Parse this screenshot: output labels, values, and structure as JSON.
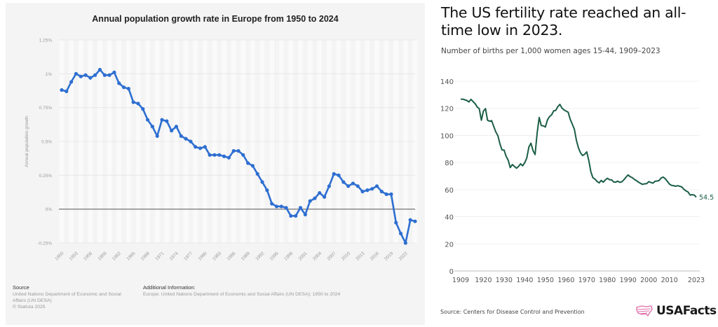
{
  "chart_data": [
    {
      "type": "line",
      "title": "Annual population growth rate in Europe from 1950 to 2024",
      "xlabel": "",
      "ylabel": "Annual population growth",
      "ylim": [
        -0.25,
        1.25
      ],
      "y_ticks": [
        1.25,
        1,
        0.75,
        0.5,
        0.25,
        0,
        -0.25
      ],
      "y_tick_labels": [
        "1.25%",
        "1%",
        "0.75%",
        "0.5%",
        "0.25%",
        "0%",
        "-0.25%"
      ],
      "x_tick_labels": [
        "1950",
        "1953",
        "1956",
        "1959",
        "1962",
        "1965",
        "1968",
        "1971",
        "1974",
        "1977",
        "1980",
        "1983",
        "1986",
        "1989",
        "1992",
        "1995",
        "1998",
        "2001",
        "2004",
        "2007",
        "2010",
        "2013",
        "2016",
        "2019",
        "2022"
      ],
      "grid": true,
      "legend": "none",
      "color": "#2e6fd1",
      "series": [
        {
          "name": "Annual population growth",
          "x": [
            1950,
            1951,
            1952,
            1953,
            1954,
            1955,
            1956,
            1957,
            1958,
            1959,
            1960,
            1961,
            1962,
            1963,
            1964,
            1965,
            1966,
            1967,
            1968,
            1969,
            1970,
            1971,
            1972,
            1973,
            1974,
            1975,
            1976,
            1977,
            1978,
            1979,
            1980,
            1981,
            1982,
            1983,
            1984,
            1985,
            1986,
            1987,
            1988,
            1989,
            1990,
            1991,
            1992,
            1993,
            1994,
            1995,
            1996,
            1997,
            1998,
            1999,
            2000,
            2001,
            2002,
            2003,
            2004,
            2005,
            2006,
            2007,
            2008,
            2009,
            2010,
            2011,
            2012,
            2013,
            2014,
            2015,
            2016,
            2017,
            2018,
            2019,
            2020,
            2021,
            2022,
            2023,
            2024
          ],
          "values": [
            0.88,
            0.87,
            0.94,
            1.0,
            0.98,
            0.99,
            0.97,
            0.99,
            1.03,
            0.99,
            0.99,
            1.01,
            0.93,
            0.9,
            0.89,
            0.79,
            0.78,
            0.74,
            0.66,
            0.61,
            0.54,
            0.66,
            0.65,
            0.58,
            0.61,
            0.54,
            0.52,
            0.5,
            0.46,
            0.45,
            0.46,
            0.4,
            0.4,
            0.4,
            0.39,
            0.38,
            0.43,
            0.43,
            0.4,
            0.34,
            0.32,
            0.26,
            0.2,
            0.14,
            0.04,
            0.02,
            0.02,
            0.01,
            -0.05,
            -0.05,
            0.01,
            -0.04,
            0.06,
            0.08,
            0.12,
            0.09,
            0.17,
            0.26,
            0.25,
            0.2,
            0.17,
            0.19,
            0.17,
            0.13,
            0.14,
            0.15,
            0.17,
            0.13,
            0.11,
            0.11,
            -0.1,
            -0.18,
            -0.25,
            -0.08,
            -0.09
          ]
        }
      ]
    },
    {
      "type": "line",
      "title": "The US fertility rate reached an all-time low in 2023.",
      "subtitle": "Number of births per 1,000 women ages 15-44, 1909–2023",
      "xlabel": "",
      "ylabel": "",
      "ylim": [
        0,
        140
      ],
      "y_ticks": [
        0,
        20,
        40,
        60,
        80,
        100,
        120,
        140
      ],
      "x_ticks": [
        1909,
        1920,
        1930,
        1940,
        1950,
        1960,
        1970,
        1980,
        1990,
        2000,
        2010,
        2023
      ],
      "grid": true,
      "legend": "none",
      "color": "#1b5e45",
      "end_label": "54.5",
      "series": [
        {
          "name": "Births per 1,000 women ages 15-44",
          "x": [
            1909,
            1910,
            1911,
            1912,
            1913,
            1914,
            1915,
            1916,
            1917,
            1918,
            1919,
            1920,
            1921,
            1922,
            1923,
            1924,
            1925,
            1926,
            1927,
            1928,
            1929,
            1930,
            1931,
            1932,
            1933,
            1934,
            1935,
            1936,
            1937,
            1938,
            1939,
            1940,
            1941,
            1942,
            1943,
            1944,
            1945,
            1946,
            1947,
            1948,
            1949,
            1950,
            1951,
            1952,
            1953,
            1954,
            1955,
            1956,
            1957,
            1958,
            1959,
            1960,
            1961,
            1962,
            1963,
            1964,
            1965,
            1966,
            1967,
            1968,
            1969,
            1970,
            1971,
            1972,
            1973,
            1974,
            1975,
            1976,
            1977,
            1978,
            1979,
            1980,
            1981,
            1982,
            1983,
            1984,
            1985,
            1986,
            1987,
            1988,
            1989,
            1990,
            1991,
            1992,
            1993,
            1994,
            1995,
            1996,
            1997,
            1998,
            1999,
            2000,
            2001,
            2002,
            2003,
            2004,
            2005,
            2006,
            2007,
            2008,
            2009,
            2010,
            2011,
            2012,
            2013,
            2014,
            2015,
            2016,
            2017,
            2018,
            2019,
            2020,
            2021,
            2022,
            2023
          ],
          "values": [
            126.8,
            126.8,
            126.3,
            125.8,
            124.7,
            126.6,
            125.0,
            123.4,
            121.0,
            119.8,
            111.2,
            117.9,
            119.8,
            111.2,
            110.5,
            110.9,
            106.6,
            102.6,
            99.8,
            93.8,
            89.3,
            89.2,
            84.6,
            81.7,
            76.3,
            78.5,
            77.2,
            75.8,
            77.1,
            79.1,
            77.6,
            79.9,
            83.4,
            91.5,
            94.3,
            88.8,
            85.9,
            101.9,
            113.3,
            107.3,
            107.1,
            106.2,
            111.5,
            113.9,
            115.2,
            118.1,
            118.5,
            121.2,
            122.9,
            120.2,
            118.8,
            118.0,
            117.1,
            112.0,
            108.3,
            104.7,
            96.3,
            90.8,
            87.2,
            85.2,
            86.1,
            87.9,
            81.6,
            73.1,
            68.8,
            67.8,
            66.0,
            65.0,
            66.8,
            65.5,
            67.2,
            68.4,
            67.3,
            67.3,
            65.7,
            65.5,
            66.3,
            65.4,
            65.8,
            67.3,
            69.2,
            70.9,
            69.6,
            68.9,
            67.6,
            66.7,
            65.6,
            64.7,
            63.9,
            64.3,
            64.4,
            65.9,
            65.3,
            64.8,
            66.1,
            66.4,
            66.7,
            68.6,
            69.3,
            68.1,
            66.2,
            64.1,
            63.2,
            63.0,
            62.5,
            62.9,
            62.5,
            62.0,
            60.3,
            59.1,
            58.3,
            56.0,
            56.3,
            56.0,
            54.5
          ]
        }
      ]
    }
  ],
  "left_footer": {
    "source_heading": "Source",
    "source_line1": "United Nations Department of Economic and Social",
    "source_line2": "Affairs (UN DESA)",
    "copyright": "© Statista 2025",
    "additional_heading": "Additional Information:",
    "additional_text": "Europe; United Nations Department of Economic and Social Affairs (UN DESA); 1950 to 2024"
  },
  "right_footer": {
    "source": "Source: Centers for Disease Control and Prevention",
    "brand": "USAFacts",
    "brand_icon": "us-map-icon",
    "brand_icon_color": "#e06aa8"
  }
}
